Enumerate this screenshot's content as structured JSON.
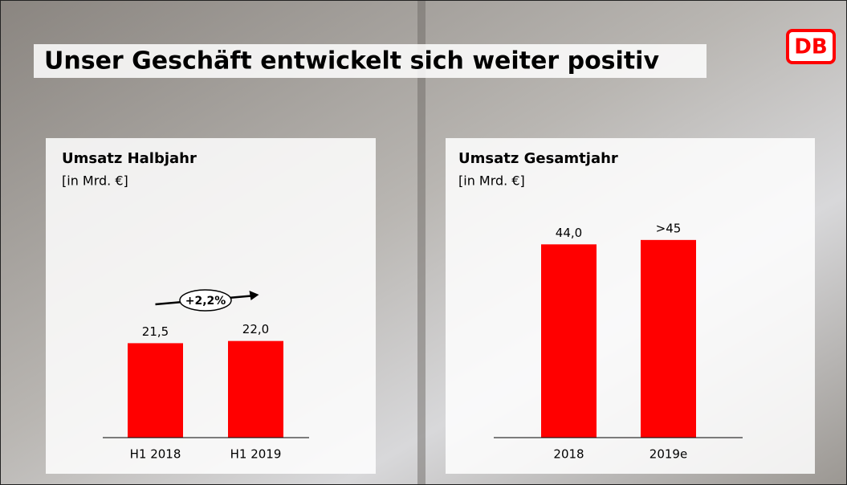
{
  "title": "Unser Geschäft entwickelt sich weiter positiv",
  "logo": "DB",
  "chart_data": [
    {
      "type": "bar",
      "title": "Umsatz Halbjahr",
      "subtitle": "[in Mrd. €]",
      "categories": [
        "H1 2018",
        "H1 2019"
      ],
      "values": [
        21.5,
        22.0
      ],
      "value_labels": [
        "21,5",
        "22,0"
      ],
      "color": "#ff0000",
      "annotation": "+2,2%"
    },
    {
      "type": "bar",
      "title": "Umsatz Gesamtjahr",
      "subtitle": "[in Mrd. €]",
      "categories": [
        "2018",
        "2019e"
      ],
      "values": [
        44.0,
        45
      ],
      "value_labels": [
        "44,0",
        ">45"
      ],
      "color": "#ff0000"
    }
  ]
}
